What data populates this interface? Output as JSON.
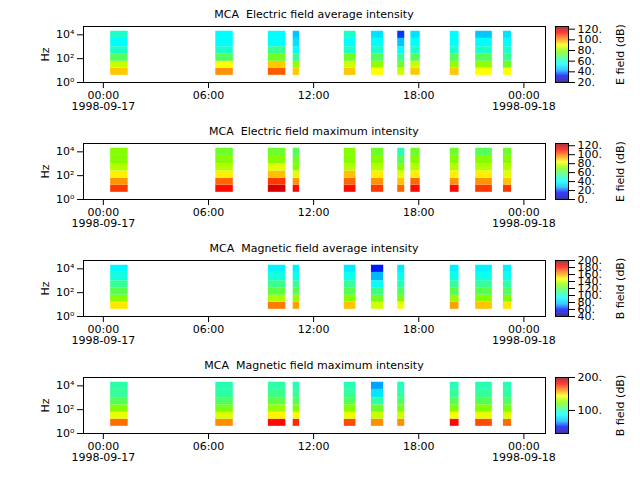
{
  "chart_data": [
    {
      "type": "heatmap",
      "title": "MCA  Electric field average intensity",
      "y_label": "Hz",
      "log": "y",
      "xlim": [
        "1998-09-16T22:52",
        "1998-09-18T01:14"
      ],
      "xticks": [
        {
          "value": "1998-09-17T00:00",
          "label": "00:00\n1998-09-17"
        },
        {
          "value": "1998-09-17T06:00",
          "label": "06:00"
        },
        {
          "value": "1998-09-17T12:00",
          "label": "12:00"
        },
        {
          "value": "1998-09-17T18:00",
          "label": "18:00"
        },
        {
          "value": "1998-09-18T00:00",
          "label": "00:00\n1998-09-18"
        }
      ],
      "ylim": [
        1,
        50000
      ],
      "yticks": [
        {
          "value": 1,
          "label": "10⁰"
        },
        {
          "value": 100,
          "label": "10²"
        },
        {
          "value": 10000,
          "label": "10⁴"
        }
      ],
      "freq_bins": [
        4,
        16,
        60,
        250,
        1000,
        5000,
        20000
      ],
      "segments": [
        {
          "start": "1998-09-17T00:25",
          "end": "1998-09-17T01:25",
          "values": [
            95,
            85,
            70,
            60,
            55,
            60
          ]
        },
        {
          "start": "1998-09-17T06:25",
          "end": "1998-09-17T07:25",
          "values": [
            100,
            90,
            70,
            60,
            55,
            55
          ]
        },
        {
          "start": "1998-09-17T09:25",
          "end": "1998-09-17T10:25",
          "values": [
            105,
            95,
            75,
            65,
            55,
            55
          ]
        },
        {
          "start": "1998-09-17T10:50",
          "end": "1998-09-17T11:12",
          "values": [
            95,
            80,
            65,
            55,
            50,
            45
          ]
        },
        {
          "start": "1998-09-17T13:45",
          "end": "1998-09-17T14:25",
          "values": [
            95,
            85,
            75,
            60,
            55,
            60
          ]
        },
        {
          "start": "1998-09-17T15:18",
          "end": "1998-09-17T16:00",
          "values": [
            90,
            80,
            70,
            60,
            55,
            50
          ]
        },
        {
          "start": "1998-09-17T16:48",
          "end": "1998-09-17T17:12",
          "values": [
            85,
            75,
            65,
            55,
            45,
            35
          ]
        },
        {
          "start": "1998-09-17T17:33",
          "end": "1998-09-17T18:05",
          "values": [
            95,
            85,
            70,
            60,
            55,
            50
          ]
        },
        {
          "start": "1998-09-17T19:48",
          "end": "1998-09-17T20:18",
          "values": [
            95,
            80,
            70,
            60,
            55,
            55
          ]
        },
        {
          "start": "1998-09-17T21:15",
          "end": "1998-09-17T22:12",
          "values": [
            90,
            80,
            70,
            60,
            55,
            45
          ]
        },
        {
          "start": "1998-09-17T22:50",
          "end": "1998-09-17T23:18",
          "values": [
            90,
            75,
            65,
            60,
            55,
            50
          ]
        }
      ],
      "colorbar": {
        "label": "E field (dB)",
        "lim": [
          20,
          125
        ],
        "ticks": [
          {
            "value": 20,
            "label": "20."
          },
          {
            "value": 40,
            "label": "40."
          },
          {
            "value": 60,
            "label": "60."
          },
          {
            "value": 80,
            "label": "80."
          },
          {
            "value": 100,
            "label": "100."
          },
          {
            "value": 120,
            "label": "120."
          }
        ]
      }
    },
    {
      "type": "heatmap",
      "title": "MCA  Electric field maximum intensity",
      "y_label": "Hz",
      "log": "y",
      "xlim": [
        "1998-09-16T22:52",
        "1998-09-18T01:14"
      ],
      "xticks": [
        {
          "value": "1998-09-17T00:00",
          "label": "00:00\n1998-09-17"
        },
        {
          "value": "1998-09-17T06:00",
          "label": "06:00"
        },
        {
          "value": "1998-09-17T12:00",
          "label": "12:00"
        },
        {
          "value": "1998-09-17T18:00",
          "label": "18:00"
        },
        {
          "value": "1998-09-18T00:00",
          "label": "00:00\n1998-09-18"
        }
      ],
      "ylim": [
        1,
        50000
      ],
      "yticks": [
        {
          "value": 1,
          "label": "10⁰"
        },
        {
          "value": 100,
          "label": "10²"
        },
        {
          "value": 10000,
          "label": "10⁴"
        }
      ],
      "freq_bins": [
        4,
        16,
        60,
        250,
        1000,
        5000,
        20000
      ],
      "segments": [
        {
          "start": "1998-09-17T00:25",
          "end": "1998-09-17T01:25",
          "values": [
            105,
            95,
            85,
            75,
            70,
            70
          ]
        },
        {
          "start": "1998-09-17T06:25",
          "end": "1998-09-17T07:25",
          "values": [
            110,
            100,
            85,
            75,
            70,
            65
          ]
        },
        {
          "start": "1998-09-17T09:25",
          "end": "1998-09-17T10:25",
          "values": [
            115,
            105,
            90,
            80,
            70,
            65
          ]
        },
        {
          "start": "1998-09-17T10:50",
          "end": "1998-09-17T11:12",
          "values": [
            110,
            95,
            80,
            70,
            65,
            60
          ]
        },
        {
          "start": "1998-09-17T13:45",
          "end": "1998-09-17T14:25",
          "values": [
            110,
            100,
            90,
            75,
            70,
            70
          ]
        },
        {
          "start": "1998-09-17T15:18",
          "end": "1998-09-17T16:00",
          "values": [
            105,
            95,
            85,
            75,
            70,
            65
          ]
        },
        {
          "start": "1998-09-17T16:48",
          "end": "1998-09-17T17:12",
          "values": [
            100,
            90,
            80,
            70,
            60,
            50
          ]
        },
        {
          "start": "1998-09-17T17:33",
          "end": "1998-09-17T18:05",
          "values": [
            110,
            100,
            85,
            75,
            70,
            65
          ]
        },
        {
          "start": "1998-09-17T19:48",
          "end": "1998-09-17T20:18",
          "values": [
            110,
            95,
            85,
            75,
            70,
            65
          ]
        },
        {
          "start": "1998-09-17T21:15",
          "end": "1998-09-17T22:12",
          "values": [
            105,
            95,
            85,
            75,
            70,
            60
          ]
        },
        {
          "start": "1998-09-17T22:50",
          "end": "1998-09-17T23:18",
          "values": [
            105,
            90,
            80,
            75,
            70,
            65
          ]
        }
      ],
      "colorbar": {
        "label": "E field (dB)",
        "lim": [
          0,
          125
        ],
        "ticks": [
          {
            "value": 0,
            "label": "0."
          },
          {
            "value": 20,
            "label": "20."
          },
          {
            "value": 40,
            "label": "40."
          },
          {
            "value": 60,
            "label": "60."
          },
          {
            "value": 80,
            "label": "80."
          },
          {
            "value": 100,
            "label": "100."
          },
          {
            "value": 120,
            "label": "120."
          }
        ]
      }
    },
    {
      "type": "heatmap",
      "title": "MCA  Magnetic field average intensity",
      "y_label": "Hz",
      "log": "y",
      "xlim": [
        "1998-09-16T22:52",
        "1998-09-18T01:14"
      ],
      "xticks": [
        {
          "value": "1998-09-17T00:00",
          "label": "00:00\n1998-09-17"
        },
        {
          "value": "1998-09-17T06:00",
          "label": "06:00"
        },
        {
          "value": "1998-09-17T12:00",
          "label": "12:00"
        },
        {
          "value": "1998-09-17T18:00",
          "label": "18:00"
        },
        {
          "value": "1998-09-18T00:00",
          "label": "00:00\n1998-09-18"
        }
      ],
      "ylim": [
        1,
        50000
      ],
      "yticks": [
        {
          "value": 1,
          "label": "10⁰"
        },
        {
          "value": 100,
          "label": "10²"
        },
        {
          "value": 10000,
          "label": "10⁴"
        }
      ],
      "freq_bins": [
        4,
        16,
        60,
        250,
        1000,
        5000,
        20000
      ],
      "segments": [
        {
          "start": "1998-09-17T00:25",
          "end": "1998-09-17T01:25",
          "values": [
            150,
            130,
            118,
            108,
            98,
            92
          ]
        },
        {
          "start": "1998-09-17T09:25",
          "end": "1998-09-17T10:25",
          "values": [
            165,
            135,
            120,
            110,
            98,
            90
          ]
        },
        {
          "start": "1998-09-17T10:50",
          "end": "1998-09-17T11:12",
          "values": [
            160,
            132,
            118,
            108,
            96,
            90
          ]
        },
        {
          "start": "1998-09-17T13:45",
          "end": "1998-09-17T14:25",
          "values": [
            155,
            130,
            118,
            108,
            96,
            88
          ]
        },
        {
          "start": "1998-09-17T15:18",
          "end": "1998-09-17T16:00",
          "values": [
            140,
            125,
            110,
            95,
            75,
            60
          ]
        },
        {
          "start": "1998-09-17T16:48",
          "end": "1998-09-17T17:12",
          "values": [
            145,
            128,
            115,
            105,
            95,
            88
          ]
        },
        {
          "start": "1998-09-17T19:48",
          "end": "1998-09-17T20:18",
          "values": [
            160,
            132,
            118,
            108,
            96,
            90
          ]
        },
        {
          "start": "1998-09-17T21:15",
          "end": "1998-09-17T22:12",
          "values": [
            155,
            130,
            118,
            108,
            96,
            90
          ]
        },
        {
          "start": "1998-09-17T22:50",
          "end": "1998-09-17T23:18",
          "values": [
            150,
            128,
            116,
            106,
            96,
            90
          ]
        }
      ],
      "colorbar": {
        "label": "B field (dB)",
        "lim": [
          40,
          200
        ],
        "ticks": [
          {
            "value": 40,
            "label": "40."
          },
          {
            "value": 60,
            "label": "60."
          },
          {
            "value": 80,
            "label": "80."
          },
          {
            "value": 100,
            "label": "100."
          },
          {
            "value": 120,
            "label": "120."
          },
          {
            "value": 140,
            "label": "140."
          },
          {
            "value": 160,
            "label": "160."
          },
          {
            "value": 180,
            "label": "180."
          },
          {
            "value": 200,
            "label": "200."
          }
        ]
      }
    },
    {
      "type": "heatmap",
      "title": "MCA  Magnetic field maximum intensity",
      "y_label": "Hz",
      "log": "y",
      "xlim": [
        "1998-09-16T22:52",
        "1998-09-18T01:14"
      ],
      "xticks": [
        {
          "value": "1998-09-17T00:00",
          "label": "00:00\n1998-09-17"
        },
        {
          "value": "1998-09-17T06:00",
          "label": "06:00"
        },
        {
          "value": "1998-09-17T12:00",
          "label": "12:00"
        },
        {
          "value": "1998-09-17T18:00",
          "label": "18:00"
        },
        {
          "value": "1998-09-18T00:00",
          "label": "00:00\n1998-09-18"
        }
      ],
      "ylim": [
        1,
        50000
      ],
      "yticks": [
        {
          "value": 1,
          "label": "10⁰"
        },
        {
          "value": 100,
          "label": "10²"
        },
        {
          "value": 10000,
          "label": "10⁴"
        }
      ],
      "freq_bins": [
        4,
        16,
        60,
        250,
        1000,
        5000,
        20000
      ],
      "segments": [
        {
          "start": "1998-09-17T00:25",
          "end": "1998-09-17T01:25",
          "values": [
            165,
            140,
            125,
            112,
            102,
            100
          ]
        },
        {
          "start": "1998-09-17T06:25",
          "end": "1998-09-17T07:25",
          "values": [
            160,
            138,
            122,
            110,
            100,
            98
          ]
        },
        {
          "start": "1998-09-17T09:25",
          "end": "1998-09-17T10:25",
          "values": [
            180,
            145,
            128,
            115,
            104,
            100
          ]
        },
        {
          "start": "1998-09-17T10:50",
          "end": "1998-09-17T11:12",
          "values": [
            175,
            142,
            125,
            112,
            102,
            98
          ]
        },
        {
          "start": "1998-09-17T13:45",
          "end": "1998-09-17T14:25",
          "values": [
            170,
            140,
            125,
            112,
            102,
            98
          ]
        },
        {
          "start": "1998-09-17T15:18",
          "end": "1998-09-17T16:00",
          "values": [
            160,
            135,
            118,
            100,
            80,
            65
          ]
        },
        {
          "start": "1998-09-17T16:48",
          "end": "1998-09-17T17:12",
          "values": [
            160,
            136,
            122,
            110,
            100,
            96
          ]
        },
        {
          "start": "1998-09-17T19:48",
          "end": "1998-09-17T20:18",
          "values": [
            180,
            142,
            125,
            112,
            102,
            98
          ]
        },
        {
          "start": "1998-09-17T21:15",
          "end": "1998-09-17T22:12",
          "values": [
            170,
            140,
            125,
            112,
            102,
            98
          ]
        },
        {
          "start": "1998-09-17T22:50",
          "end": "1998-09-17T23:18",
          "values": [
            165,
            138,
            122,
            110,
            100,
            98
          ]
        }
      ],
      "colorbar": {
        "label": "B field (dB)",
        "lim": [
          30,
          200
        ],
        "ticks": [
          {
            "value": 100,
            "label": "100."
          },
          {
            "value": 200,
            "label": "200."
          }
        ]
      }
    }
  ]
}
